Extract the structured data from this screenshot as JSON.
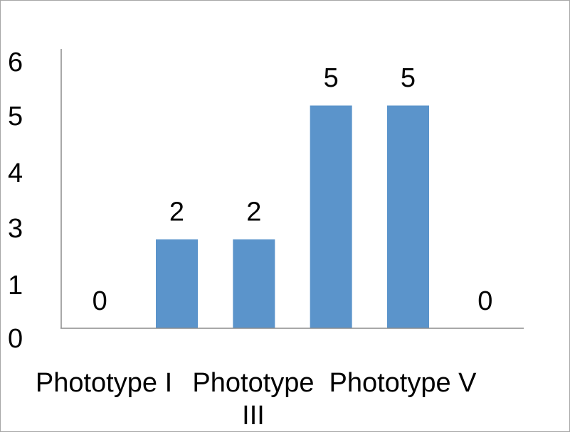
{
  "chart_data": {
    "type": "bar",
    "title": "",
    "xlabel": "",
    "ylabel": "",
    "categories": [
      "Phototype I",
      "",
      "Phototype III",
      "",
      "Phototype V",
      ""
    ],
    "values": [
      0,
      2,
      2,
      5,
      5,
      0
    ],
    "data_labels": [
      "0",
      "2",
      "2",
      "5",
      "5",
      "0"
    ],
    "y_tick_labels": [
      "0",
      "1",
      "3",
      "4",
      "5",
      "6"
    ],
    "ylim": [
      0,
      6
    ],
    "grid": false,
    "legend": "none",
    "bar_color": "#5b94cb",
    "axis_color": "#8c8c8c"
  }
}
